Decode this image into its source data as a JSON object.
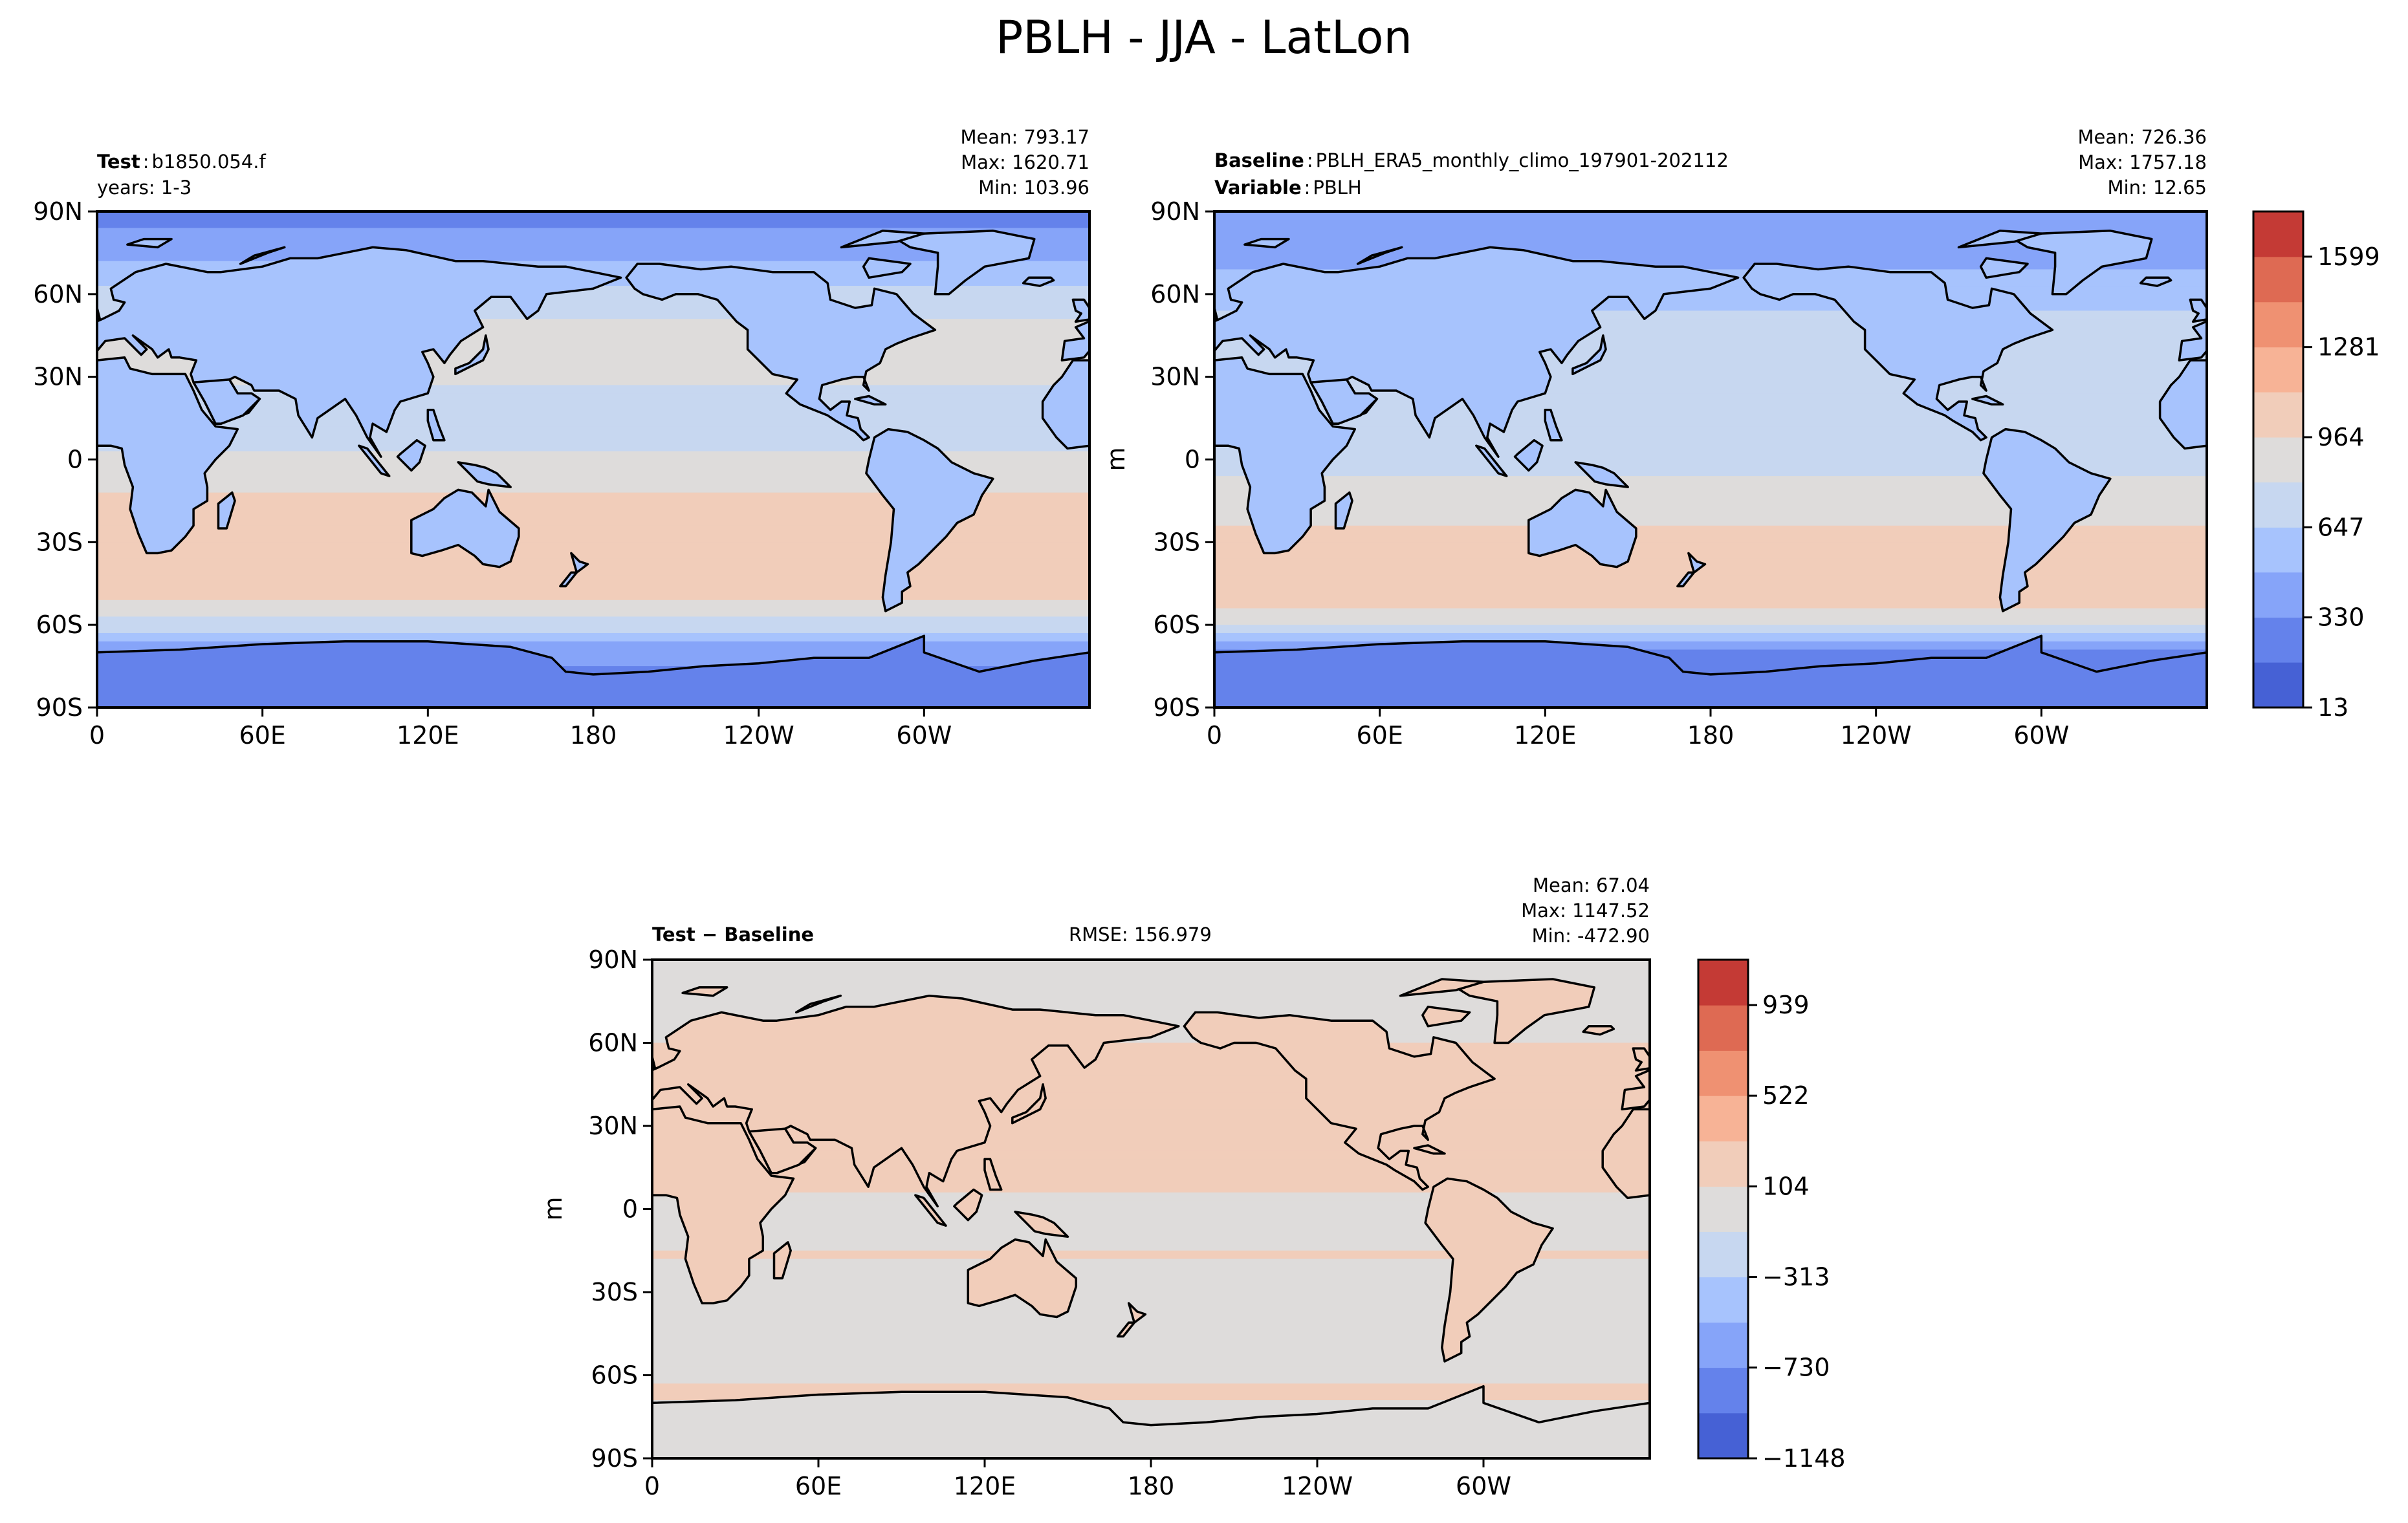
{
  "figure": {
    "title": "PBLH - JJA - LatLon"
  },
  "panels": [
    {
      "id": "test",
      "label_bold": "Test",
      "label_sep": ":",
      "label_value": "b1850.054.f",
      "line2": "years: 1-3",
      "stats": {
        "mean": "Mean: 793.17",
        "max": "Max: 1620.71",
        "min": "Min: 103.96"
      },
      "ylabel": ""
    },
    {
      "id": "baseline",
      "label_bold": "Baseline",
      "label_sep": ":",
      "label_value": "PBLH_ERA5_monthly_climo_197901-202112",
      "line2_bold": "Variable",
      "line2_sep": ":",
      "line2_value": "PBLH",
      "stats": {
        "mean": "Mean: 726.36",
        "max": "Max: 1757.18",
        "min": "Min: 12.65"
      },
      "ylabel": "m"
    },
    {
      "id": "diff",
      "label_bold": "Test − Baseline",
      "rmse": "RMSE: 156.979",
      "stats": {
        "mean": "Mean: 67.04",
        "max": "Max: 1147.52",
        "min": "Min: -472.90"
      },
      "ylabel": "m"
    }
  ],
  "chart_data": [
    {
      "type": "heatmap",
      "projection": "PlateCarree",
      "title": "Test: b1850.054.f",
      "xlabel": "",
      "ylabel": "",
      "xticks": [
        "0",
        "60E",
        "120E",
        "180",
        "120W",
        "60W"
      ],
      "xtick_values": [
        0,
        60,
        120,
        180,
        240,
        300
      ],
      "yticks": [
        "90N",
        "60N",
        "30N",
        "0",
        "30S",
        "60S",
        "90S"
      ],
      "ytick_values": [
        90,
        60,
        30,
        0,
        -30,
        -60,
        -90
      ],
      "xlim": [
        0,
        360
      ],
      "ylim": [
        -90,
        90
      ],
      "zonal_profile": [
        {
          "lat": 90,
          "value": 300
        },
        {
          "lat": 80,
          "value": 360
        },
        {
          "lat": 70,
          "value": 520
        },
        {
          "lat": 60,
          "value": 700
        },
        {
          "lat": 45,
          "value": 880
        },
        {
          "lat": 30,
          "value": 820
        },
        {
          "lat": 15,
          "value": 720
        },
        {
          "lat": 0,
          "value": 820
        },
        {
          "lat": -15,
          "value": 1020
        },
        {
          "lat": -30,
          "value": 1080
        },
        {
          "lat": -45,
          "value": 1000
        },
        {
          "lat": -55,
          "value": 930
        },
        {
          "lat": -62,
          "value": 650
        },
        {
          "lat": -70,
          "value": 380
        },
        {
          "lat": -80,
          "value": 300
        },
        {
          "lat": -90,
          "value": 260
        }
      ]
    },
    {
      "type": "heatmap",
      "projection": "PlateCarree",
      "title": "Baseline: PBLH_ERA5_monthly_climo_197901-202112",
      "xlabel": "",
      "ylabel": "m",
      "xticks": [
        "0",
        "60E",
        "120E",
        "180",
        "120W",
        "60W"
      ],
      "xtick_values": [
        0,
        60,
        120,
        180,
        240,
        300
      ],
      "yticks": [
        "90N",
        "60N",
        "30N",
        "0",
        "30S",
        "60S",
        "90S"
      ],
      "ytick_values": [
        90,
        60,
        30,
        0,
        -30,
        -60,
        -90
      ],
      "xlim": [
        0,
        360
      ],
      "ylim": [
        -90,
        90
      ],
      "zonal_profile": [
        {
          "lat": 90,
          "value": 330
        },
        {
          "lat": 80,
          "value": 430
        },
        {
          "lat": 70,
          "value": 480
        },
        {
          "lat": 60,
          "value": 600
        },
        {
          "lat": 45,
          "value": 700
        },
        {
          "lat": 30,
          "value": 720
        },
        {
          "lat": 15,
          "value": 640
        },
        {
          "lat": 0,
          "value": 760
        },
        {
          "lat": -15,
          "value": 900
        },
        {
          "lat": -30,
          "value": 1000
        },
        {
          "lat": -45,
          "value": 1040
        },
        {
          "lat": -55,
          "value": 960
        },
        {
          "lat": -62,
          "value": 720
        },
        {
          "lat": -70,
          "value": 330
        },
        {
          "lat": -80,
          "value": 180
        },
        {
          "lat": -90,
          "value": 150
        }
      ],
      "colorbar": {
        "levels": [
          13,
          172,
          330,
          489,
          647,
          806,
          964,
          1123,
          1281,
          1440,
          1599,
          1758
        ],
        "tick_labels": [
          "13",
          "330",
          "647",
          "964",
          "1281",
          "1599"
        ],
        "tick_values": [
          13,
          330,
          647,
          964,
          1281,
          1599
        ],
        "colors": [
          "#4661d5",
          "#6482eb",
          "#86a4f9",
          "#a7c3fd",
          "#c7d7f0",
          "#dedcdb",
          "#f1cdba",
          "#f7b396",
          "#ef9172",
          "#de6a53",
          "#c43a35"
        ]
      }
    },
    {
      "type": "heatmap",
      "projection": "PlateCarree",
      "title": "Test − Baseline",
      "xlabel": "",
      "ylabel": "m",
      "xticks": [
        "0",
        "60E",
        "120E",
        "180",
        "120W",
        "60W"
      ],
      "xtick_values": [
        0,
        60,
        120,
        180,
        240,
        300
      ],
      "yticks": [
        "90N",
        "60N",
        "30N",
        "0",
        "30S",
        "60S",
        "90S"
      ],
      "ytick_values": [
        90,
        60,
        30,
        0,
        -30,
        -60,
        -90
      ],
      "xlim": [
        0,
        360
      ],
      "ylim": [
        -90,
        90
      ],
      "zonal_profile": [
        {
          "lat": 90,
          "value": -100
        },
        {
          "lat": 75,
          "value": -20
        },
        {
          "lat": 55,
          "value": 150
        },
        {
          "lat": 40,
          "value": 200
        },
        {
          "lat": 25,
          "value": 120
        },
        {
          "lat": 10,
          "value": 160
        },
        {
          "lat": 0,
          "value": 40
        },
        {
          "lat": -15,
          "value": 110
        },
        {
          "lat": -30,
          "value": 60
        },
        {
          "lat": -45,
          "value": -20
        },
        {
          "lat": -55,
          "value": 10
        },
        {
          "lat": -65,
          "value": 120
        },
        {
          "lat": -75,
          "value": 60
        },
        {
          "lat": -90,
          "value": 120
        }
      ],
      "colorbar": {
        "levels": [
          -1148,
          -939,
          -730,
          -522,
          -313,
          -104,
          104,
          313,
          522,
          730,
          939,
          1148
        ],
        "tick_labels": [
          "−1148",
          "−730",
          "−313",
          "104",
          "522",
          "939"
        ],
        "tick_values": [
          -1148,
          -730,
          -313,
          104,
          522,
          939
        ],
        "colors": [
          "#4661d5",
          "#6482eb",
          "#86a4f9",
          "#a7c3fd",
          "#c7d7f0",
          "#dedcdb",
          "#f1cdba",
          "#f7b396",
          "#ef9172",
          "#de6a53",
          "#c43a35"
        ]
      }
    }
  ]
}
